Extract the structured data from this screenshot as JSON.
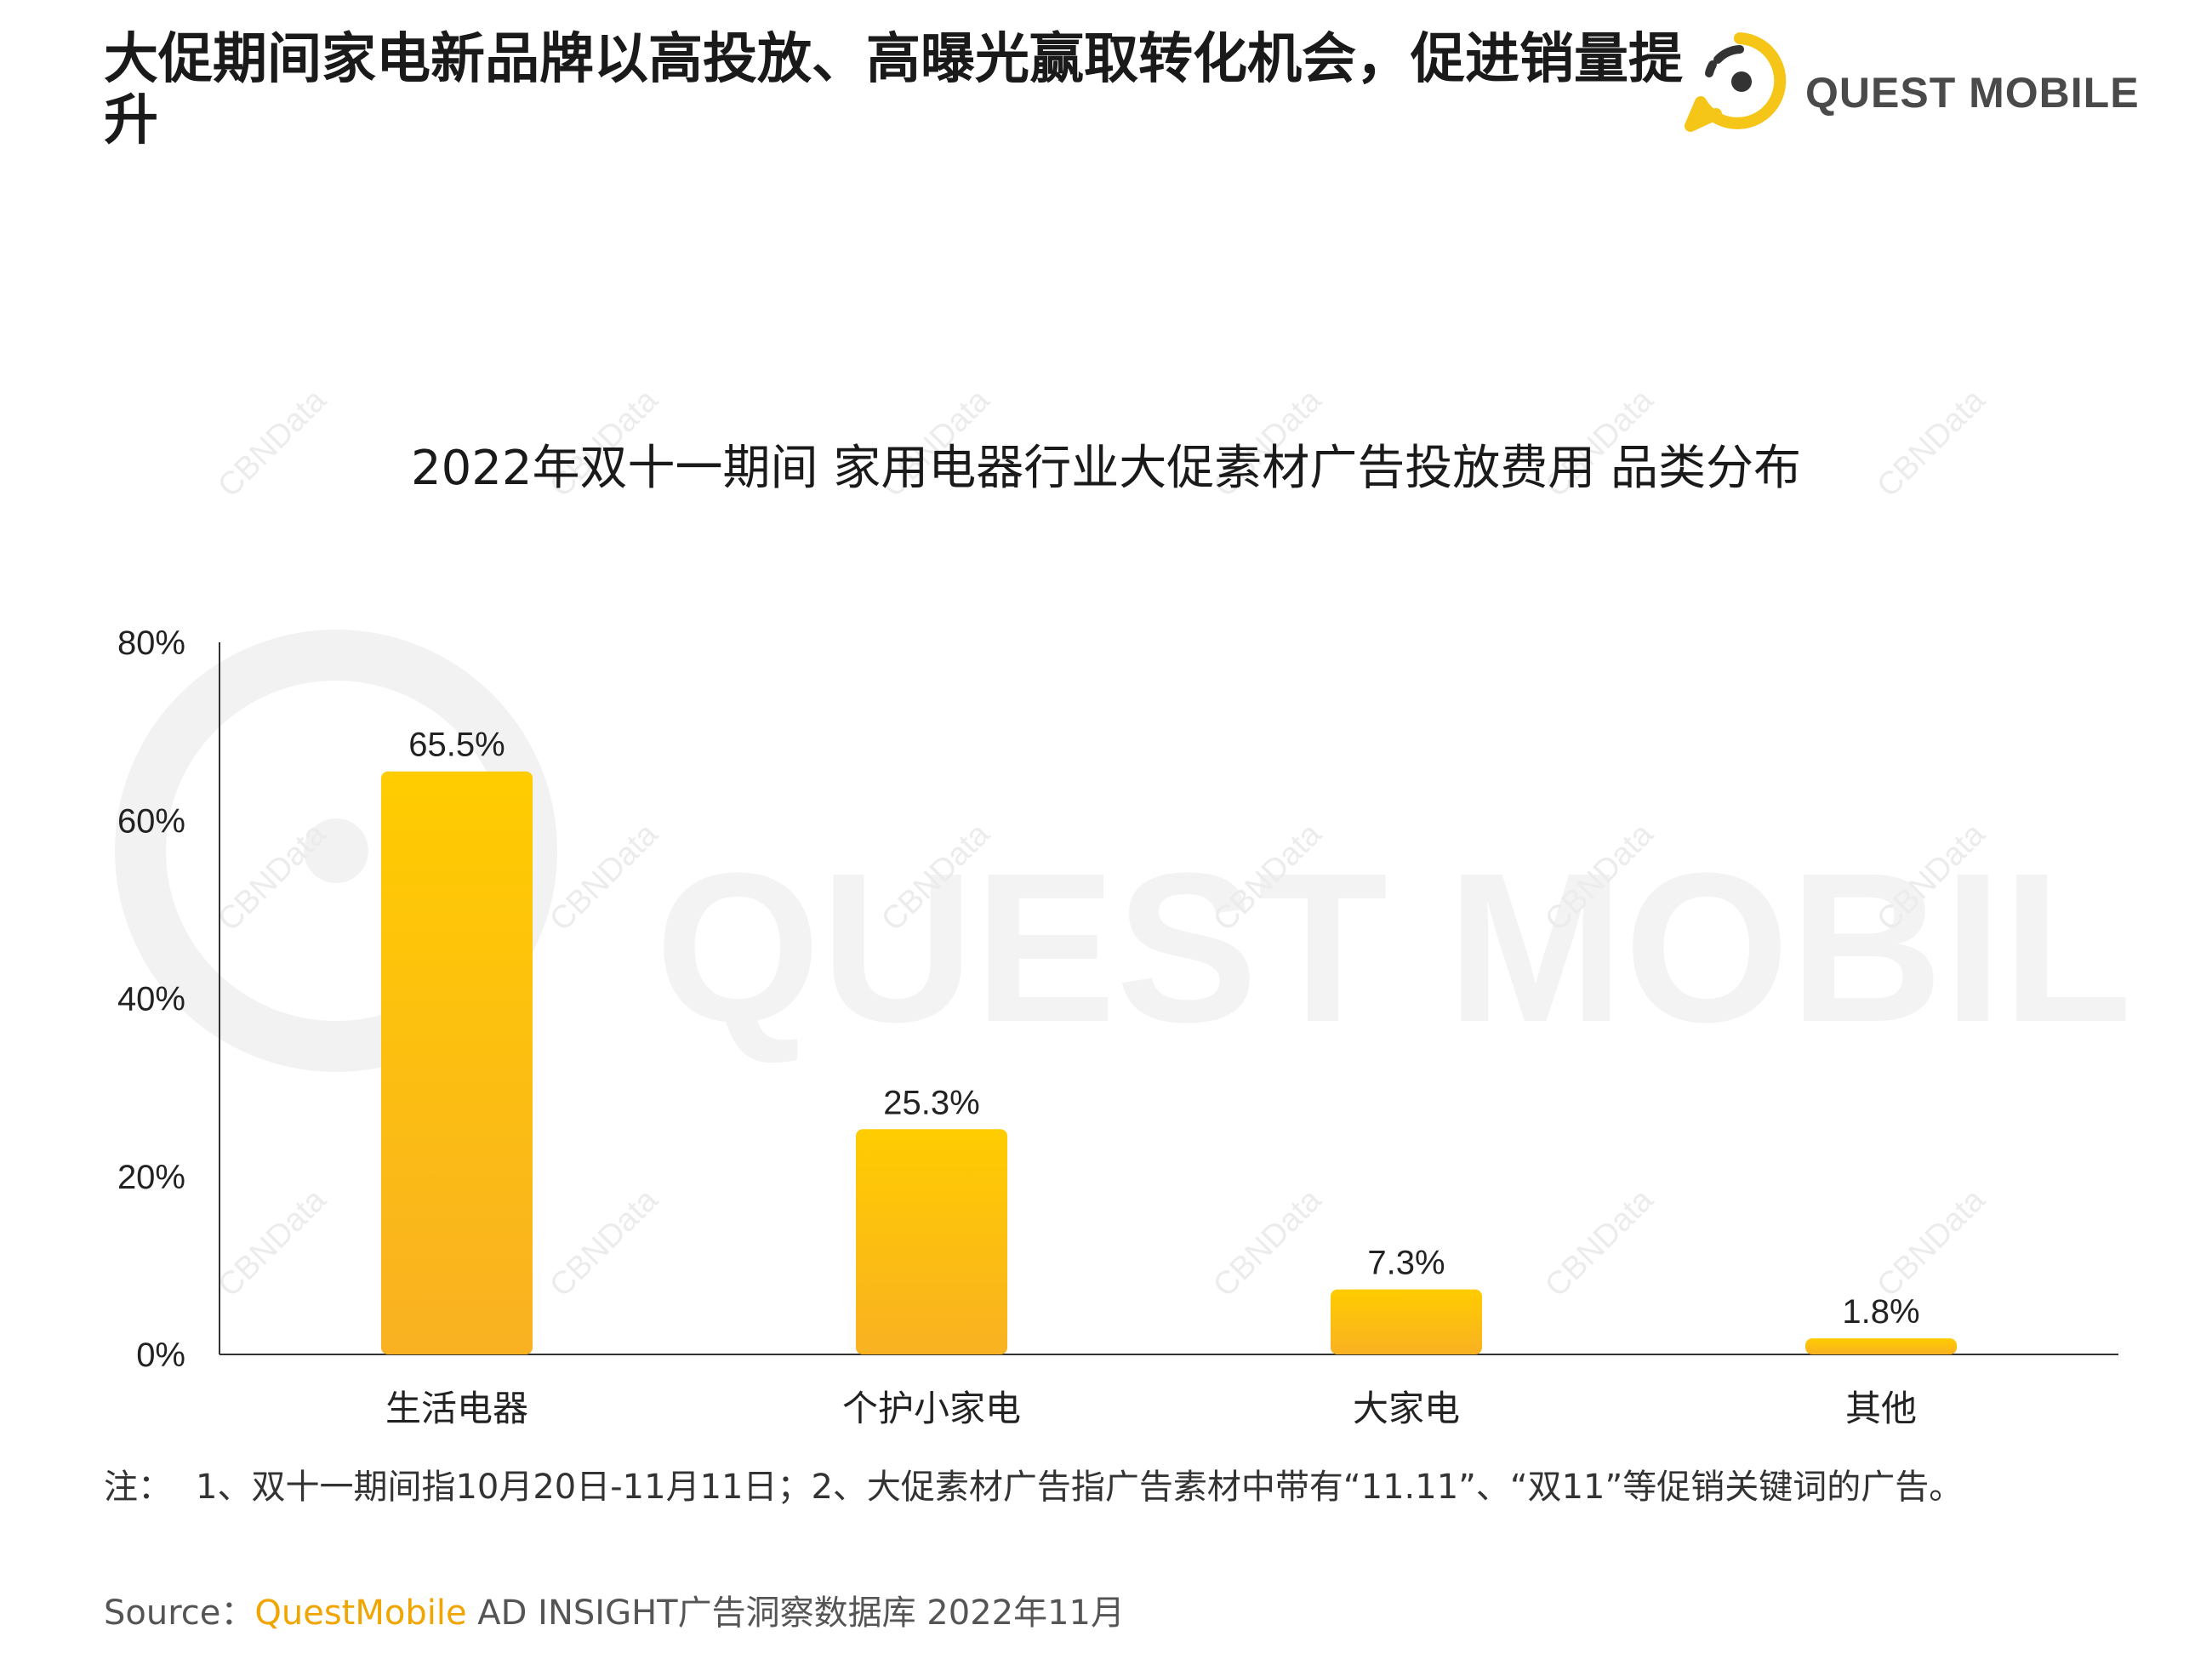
{
  "headline": "大促期间家电新品牌以高投放、高曝光赢取转化机会，促进销量提升",
  "logo": {
    "text": "QUEST MOBILE",
    "icon": "questmobile-logo-icon",
    "accent_color": "#F5C518"
  },
  "watermark": {
    "big_text": "QUEST MOBILE",
    "tile_text": "CBNData"
  },
  "chart_data": {
    "type": "bar",
    "title": "2022年双十一期间 家用电器行业大促素材广告投放费用 品类分布",
    "categories": [
      "生活电器",
      "个护小家电",
      "大家电",
      "其他"
    ],
    "values": [
      65.5,
      25.3,
      7.3,
      1.8
    ],
    "value_labels": [
      "65.5%",
      "25.3%",
      "7.3%",
      "1.8%"
    ],
    "y_ticks": [
      "0%",
      "20%",
      "40%",
      "60%",
      "80%"
    ],
    "y_tick_values": [
      0,
      20,
      40,
      60,
      80
    ],
    "ylim": [
      0,
      80
    ],
    "xlabel": "",
    "ylabel": "",
    "grid": false,
    "legend": "none",
    "bar_color_top": "#FFCC00",
    "bar_color_bottom": "#F9B122"
  },
  "note": {
    "label": "注：",
    "text": "1、双十一期间指10月20日-11月11日；2、大促素材广告指广告素材中带有“11.11”、“双11”等促销关键词的广告。"
  },
  "source": {
    "label": "Source：",
    "brand": "QuestMobile",
    "text": " AD INSIGHT广告洞察数据库 2022年11月"
  }
}
